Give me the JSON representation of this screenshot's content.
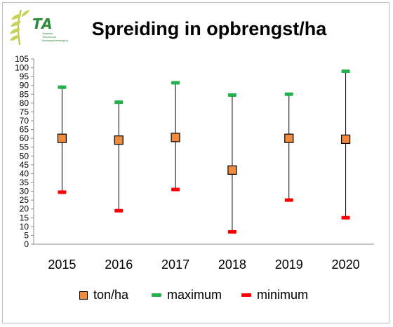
{
  "logo": {
    "text": "TA",
    "subtitle": "Vlaamse Technische Aardappelvereniging"
  },
  "chart_data": {
    "type": "scatter",
    "title": "Spreiding in opbrengst/ha",
    "xlabel": "",
    "ylabel": "",
    "categories": [
      "2015",
      "2016",
      "2017",
      "2018",
      "2019",
      "2020"
    ],
    "ylim": [
      0,
      105
    ],
    "yticks": [
      0,
      5,
      10,
      15,
      20,
      25,
      30,
      35,
      40,
      45,
      50,
      55,
      60,
      65,
      70,
      75,
      80,
      85,
      90,
      95,
      100,
      105
    ],
    "grid": false,
    "legend_position": "bottom",
    "series": [
      {
        "name": "ton/ha",
        "values": [
          60,
          59,
          60.5,
          42,
          60,
          59.5
        ],
        "color": "#f08a3c",
        "marker": "square"
      },
      {
        "name": "maximum",
        "values": [
          89,
          80.5,
          91.5,
          84.5,
          85,
          98
        ],
        "color": "#22b14c",
        "marker": "dash"
      },
      {
        "name": "minimum",
        "values": [
          29.5,
          19,
          31,
          7,
          25,
          15
        ],
        "color": "#ff0000",
        "marker": "dash"
      }
    ]
  }
}
